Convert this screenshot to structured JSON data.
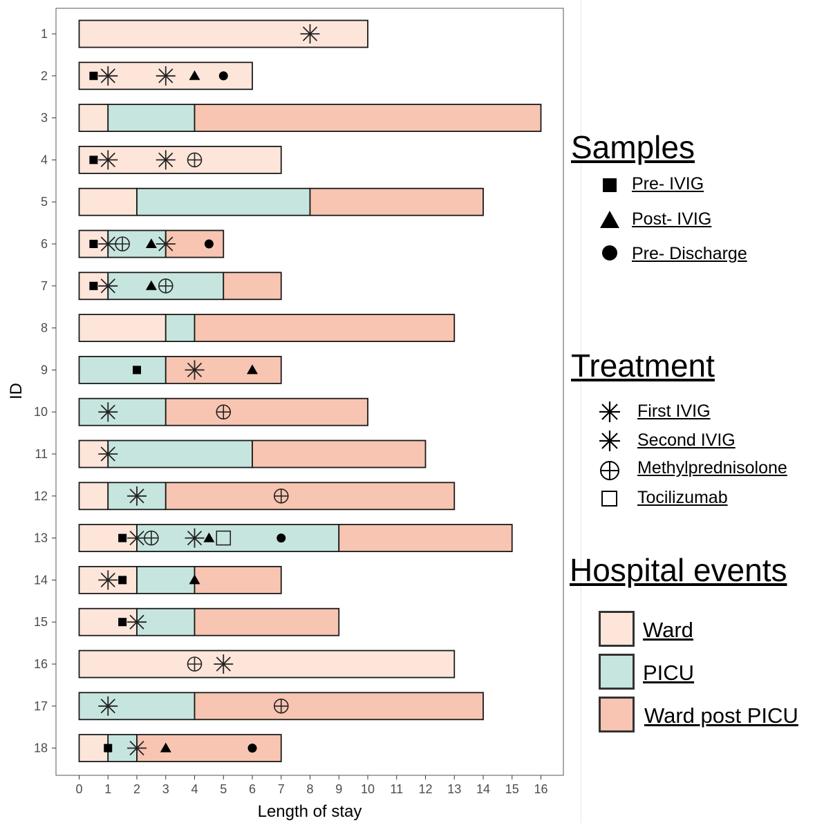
{
  "chart_data": {
    "type": "timeline",
    "xlabel": "Length of stay",
    "ylabel": "ID",
    "xlim": [
      0,
      16
    ],
    "x_ticks": [
      0,
      1,
      2,
      3,
      4,
      5,
      6,
      7,
      8,
      9,
      10,
      11,
      12,
      13,
      14,
      15,
      16
    ],
    "colors": {
      "Ward": "#fde5da",
      "PICU": "#c6e5de",
      "Ward post PICU": "#f7c5b2"
    },
    "patients": [
      {
        "id": "1",
        "segments": [
          [
            "Ward",
            0,
            10
          ]
        ],
        "events": [
          [
            "First IVIG",
            8
          ]
        ]
      },
      {
        "id": "2",
        "segments": [
          [
            "Ward",
            0,
            6
          ]
        ],
        "events": [
          [
            "Pre- IVIG",
            0.5
          ],
          [
            "First IVIG",
            1
          ],
          [
            "Second IVIG",
            3
          ],
          [
            "Post- IVIG",
            4
          ],
          [
            "Pre- Discharge",
            5
          ]
        ]
      },
      {
        "id": "3",
        "segments": [
          [
            "Ward",
            0,
            1
          ],
          [
            "PICU",
            1,
            4
          ],
          [
            "Ward post PICU",
            4,
            16
          ]
        ],
        "events": []
      },
      {
        "id": "4",
        "segments": [
          [
            "Ward",
            0,
            7
          ]
        ],
        "events": [
          [
            "Pre- IVIG",
            0.5
          ],
          [
            "First IVIG",
            1
          ],
          [
            "Second IVIG",
            3
          ],
          [
            "Methylprednisolone",
            4
          ]
        ]
      },
      {
        "id": "5",
        "segments": [
          [
            "Ward",
            0,
            2
          ],
          [
            "PICU",
            2,
            8
          ],
          [
            "Ward post PICU",
            8,
            14
          ]
        ],
        "events": []
      },
      {
        "id": "6",
        "segments": [
          [
            "Ward",
            0,
            1
          ],
          [
            "PICU",
            1,
            3
          ],
          [
            "Ward post PICU",
            3,
            5
          ]
        ],
        "events": [
          [
            "Pre- IVIG",
            0.5
          ],
          [
            "First IVIG",
            1
          ],
          [
            "Methylprednisolone",
            1.5
          ],
          [
            "Post- IVIG",
            2.5
          ],
          [
            "Second IVIG",
            3
          ],
          [
            "Pre- Discharge",
            4.5
          ]
        ]
      },
      {
        "id": "7",
        "segments": [
          [
            "Ward",
            0,
            1
          ],
          [
            "PICU",
            1,
            5
          ],
          [
            "Ward post PICU",
            5,
            7
          ]
        ],
        "events": [
          [
            "Pre- IVIG",
            0.5
          ],
          [
            "First IVIG",
            1
          ],
          [
            "Post- IVIG",
            2.5
          ],
          [
            "Methylprednisolone",
            3
          ]
        ]
      },
      {
        "id": "8",
        "segments": [
          [
            "Ward",
            0,
            3
          ],
          [
            "PICU",
            3,
            4
          ],
          [
            "Ward post PICU",
            4,
            13
          ]
        ],
        "events": []
      },
      {
        "id": "9",
        "segments": [
          [
            "PICU",
            0,
            3
          ],
          [
            "Ward post PICU",
            3,
            7
          ]
        ],
        "events": [
          [
            "Pre- IVIG",
            2
          ],
          [
            "First IVIG",
            4
          ],
          [
            "Post- IVIG",
            6
          ]
        ]
      },
      {
        "id": "10",
        "segments": [
          [
            "PICU",
            0,
            3
          ],
          [
            "Ward post PICU",
            3,
            10
          ]
        ],
        "events": [
          [
            "First IVIG",
            1
          ],
          [
            "Methylprednisolone",
            5
          ]
        ]
      },
      {
        "id": "11",
        "segments": [
          [
            "Ward",
            0,
            1
          ],
          [
            "PICU",
            1,
            6
          ],
          [
            "Ward post PICU",
            6,
            12
          ]
        ],
        "events": [
          [
            "First IVIG",
            1
          ]
        ]
      },
      {
        "id": "12",
        "segments": [
          [
            "Ward",
            0,
            1
          ],
          [
            "PICU",
            1,
            3
          ],
          [
            "Ward post PICU",
            3,
            13
          ]
        ],
        "events": [
          [
            "First IVIG",
            2
          ],
          [
            "Methylprednisolone",
            7
          ]
        ]
      },
      {
        "id": "13",
        "segments": [
          [
            "Ward",
            0,
            2
          ],
          [
            "PICU",
            2,
            9
          ],
          [
            "Ward post PICU",
            9,
            15
          ]
        ],
        "events": [
          [
            "Pre- IVIG",
            1.5
          ],
          [
            "First IVIG",
            2
          ],
          [
            "Methylprednisolone",
            2.5
          ],
          [
            "Second IVIG",
            4
          ],
          [
            "Post- IVIG",
            4.5
          ],
          [
            "Tocilizumab",
            5
          ],
          [
            "Pre- Discharge",
            7
          ]
        ]
      },
      {
        "id": "14",
        "segments": [
          [
            "Ward",
            0,
            2
          ],
          [
            "PICU",
            2,
            4
          ],
          [
            "Ward post PICU",
            4,
            7
          ]
        ],
        "events": [
          [
            "First IVIG",
            1
          ],
          [
            "Pre- IVIG",
            1.5
          ],
          [
            "Post- IVIG",
            4
          ]
        ]
      },
      {
        "id": "15",
        "segments": [
          [
            "Ward",
            0,
            2
          ],
          [
            "PICU",
            2,
            4
          ],
          [
            "Ward post PICU",
            4,
            9
          ]
        ],
        "events": [
          [
            "Pre- IVIG",
            1.5
          ],
          [
            "First IVIG",
            2
          ]
        ]
      },
      {
        "id": "16",
        "segments": [
          [
            "Ward",
            0,
            13
          ]
        ],
        "events": [
          [
            "Methylprednisolone",
            4
          ],
          [
            "First IVIG",
            5
          ]
        ]
      },
      {
        "id": "17",
        "segments": [
          [
            "PICU",
            0,
            4
          ],
          [
            "Ward post PICU",
            4,
            14
          ]
        ],
        "events": [
          [
            "First IVIG",
            1
          ],
          [
            "Methylprednisolone",
            7
          ]
        ]
      },
      {
        "id": "18",
        "segments": [
          [
            "Ward",
            0,
            1
          ],
          [
            "PICU",
            1,
            2
          ],
          [
            "Ward post PICU",
            2,
            7
          ]
        ],
        "events": [
          [
            "Pre- IVIG",
            1
          ],
          [
            "First IVIG",
            2
          ],
          [
            "Post- IVIG",
            3
          ],
          [
            "Pre- Discharge",
            6
          ]
        ]
      }
    ]
  },
  "legend": {
    "samples": {
      "title": "Samples",
      "items": [
        {
          "label": "Pre- IVIG",
          "symbol": "square-filled"
        },
        {
          "label": "Post- IVIG",
          "symbol": "triangle-filled"
        },
        {
          "label": "Pre- Discharge",
          "symbol": "circle-filled"
        }
      ]
    },
    "treatment": {
      "title": "Treatment",
      "items": [
        {
          "label": "First IVIG",
          "symbol": "asterisk"
        },
        {
          "label": "Second IVIG",
          "symbol": "asterisk"
        },
        {
          "label": "Methylprednisolone",
          "symbol": "circle-plus"
        },
        {
          "label": "Tocilizumab",
          "symbol": "square-open"
        }
      ]
    },
    "hospital_events": {
      "title": "Hospital events",
      "items": [
        {
          "label": "Ward",
          "color": "#fde5da"
        },
        {
          "label": "PICU",
          "color": "#c6e5de"
        },
        {
          "label": "Ward post PICU",
          "color": "#f7c5b2"
        }
      ]
    }
  }
}
